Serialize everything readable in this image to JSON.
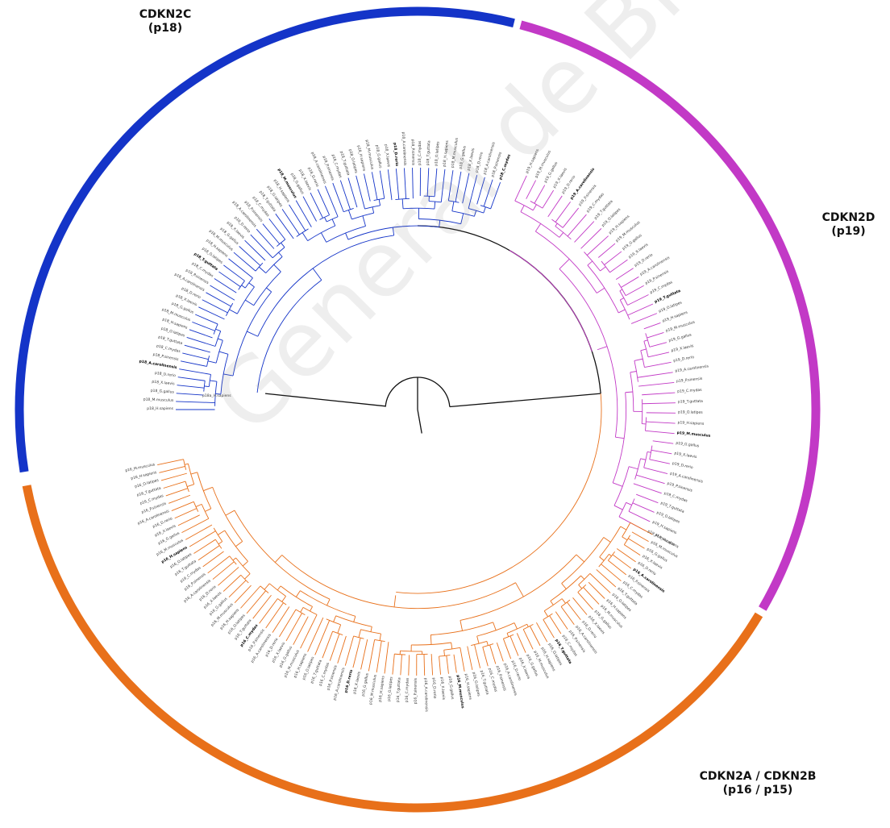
{
  "clades": [
    {
      "id": "p18",
      "gene": "CDKN2C",
      "protein": "(p18)",
      "color": "#1434c8"
    },
    {
      "id": "p19",
      "gene": "CDKN2D",
      "protein": "(p19)",
      "color": "#c239c6"
    },
    {
      "id": "p16",
      "gene": "CDKN2A / CDKN2B",
      "protein": "(p16 / p15)",
      "color": "#e8701a"
    }
  ],
  "root_color": "#111111",
  "watermark": "General de Bibliotecas de la UA",
  "outgroup_label": "p18a_H.sapiens"
}
